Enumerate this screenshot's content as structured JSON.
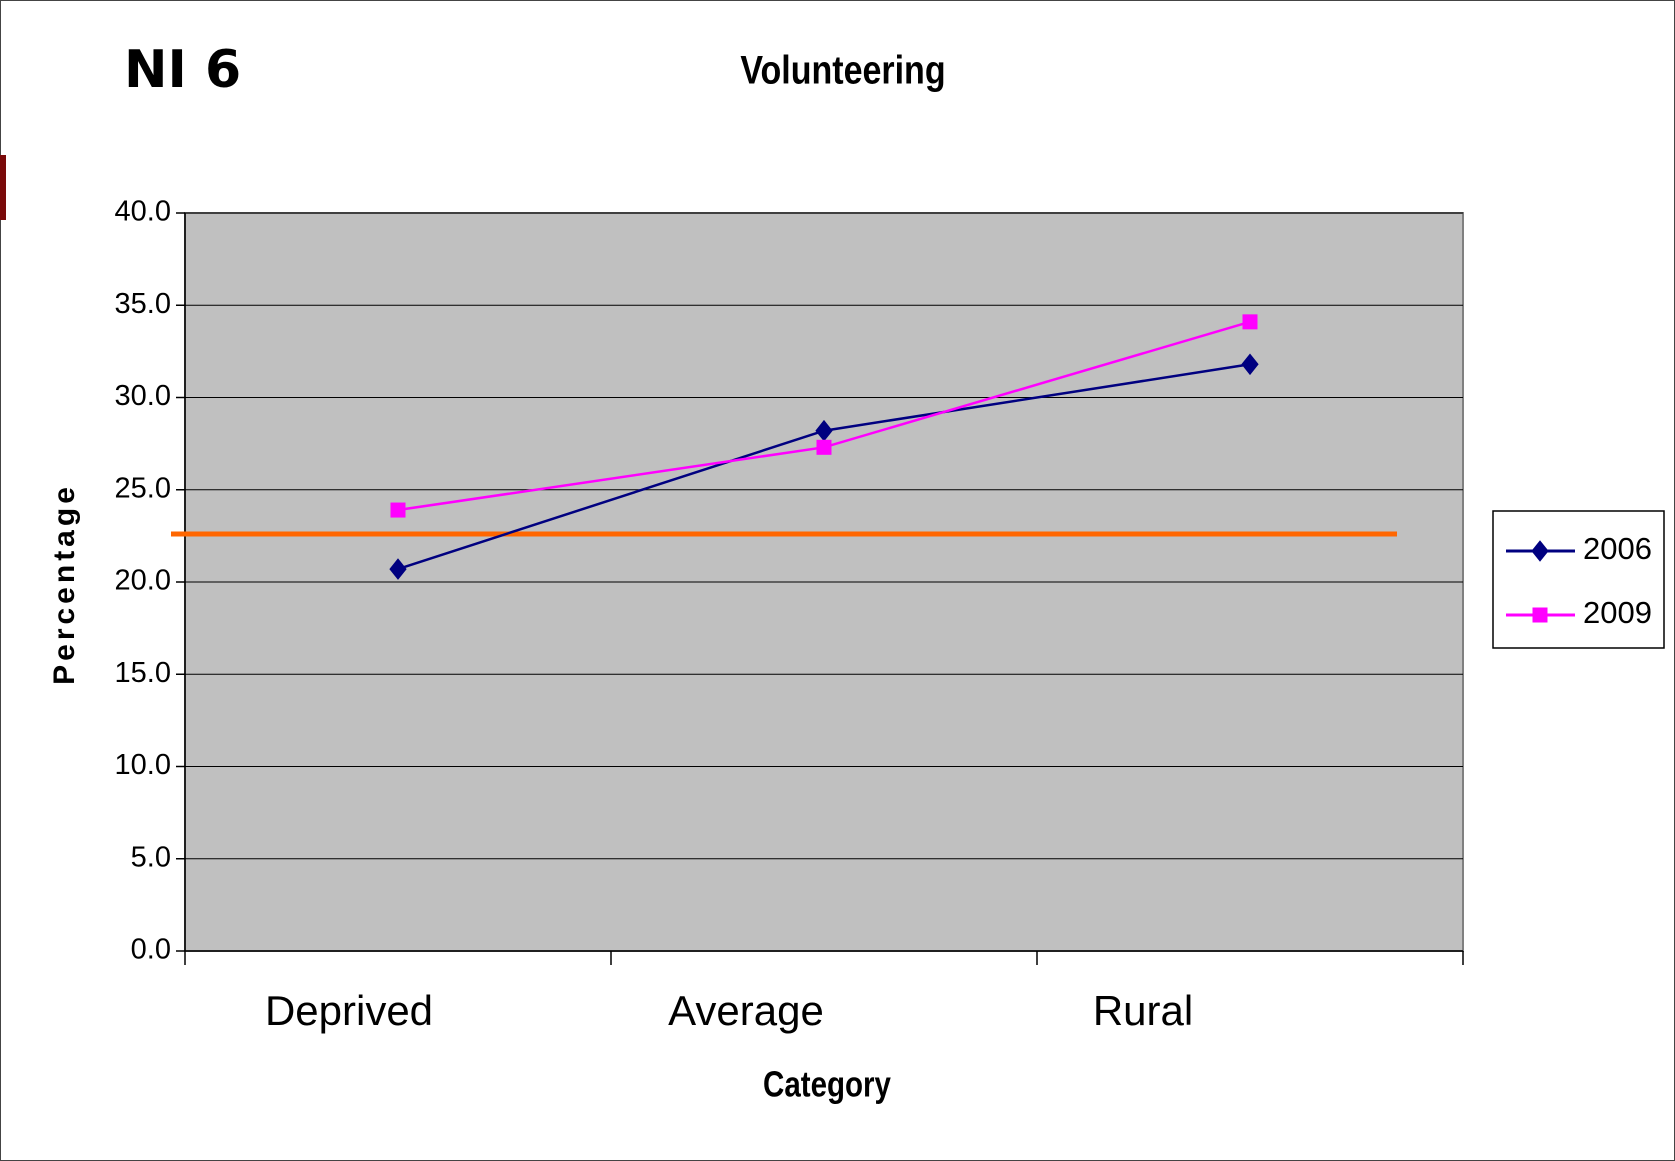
{
  "chart_data": {
    "type": "line",
    "label": "NI 6",
    "title": "Volunteering",
    "x_label": "Category",
    "y_label": "Percentage",
    "categories": [
      "Deprived",
      "Average",
      "Rural"
    ],
    "series": [
      {
        "name": "2006",
        "color": "#000080",
        "marker": "diamond",
        "values": [
          20.7,
          28.2,
          31.8
        ]
      },
      {
        "name": "2009",
        "color": "#ff00ff",
        "marker": "square",
        "values": [
          23.9,
          27.3,
          34.1
        ]
      }
    ],
    "reference_line": {
      "value": 22.6,
      "color": "#ff6600"
    },
    "ylim": [
      0,
      40
    ],
    "yticks": [
      {
        "value": 0,
        "label": "0.0"
      },
      {
        "value": 5,
        "label": "5.0"
      },
      {
        "value": 10,
        "label": "10.0"
      },
      {
        "value": 15,
        "label": "15.0"
      },
      {
        "value": 20,
        "label": "20.0"
      },
      {
        "value": 25,
        "label": "25.0"
      },
      {
        "value": 30,
        "label": "30.0"
      },
      {
        "value": 35,
        "label": "35.0"
      },
      {
        "value": 40,
        "label": "40.0"
      }
    ],
    "grid": true,
    "plot_background": "#c0c0c0",
    "legend": "right"
  }
}
